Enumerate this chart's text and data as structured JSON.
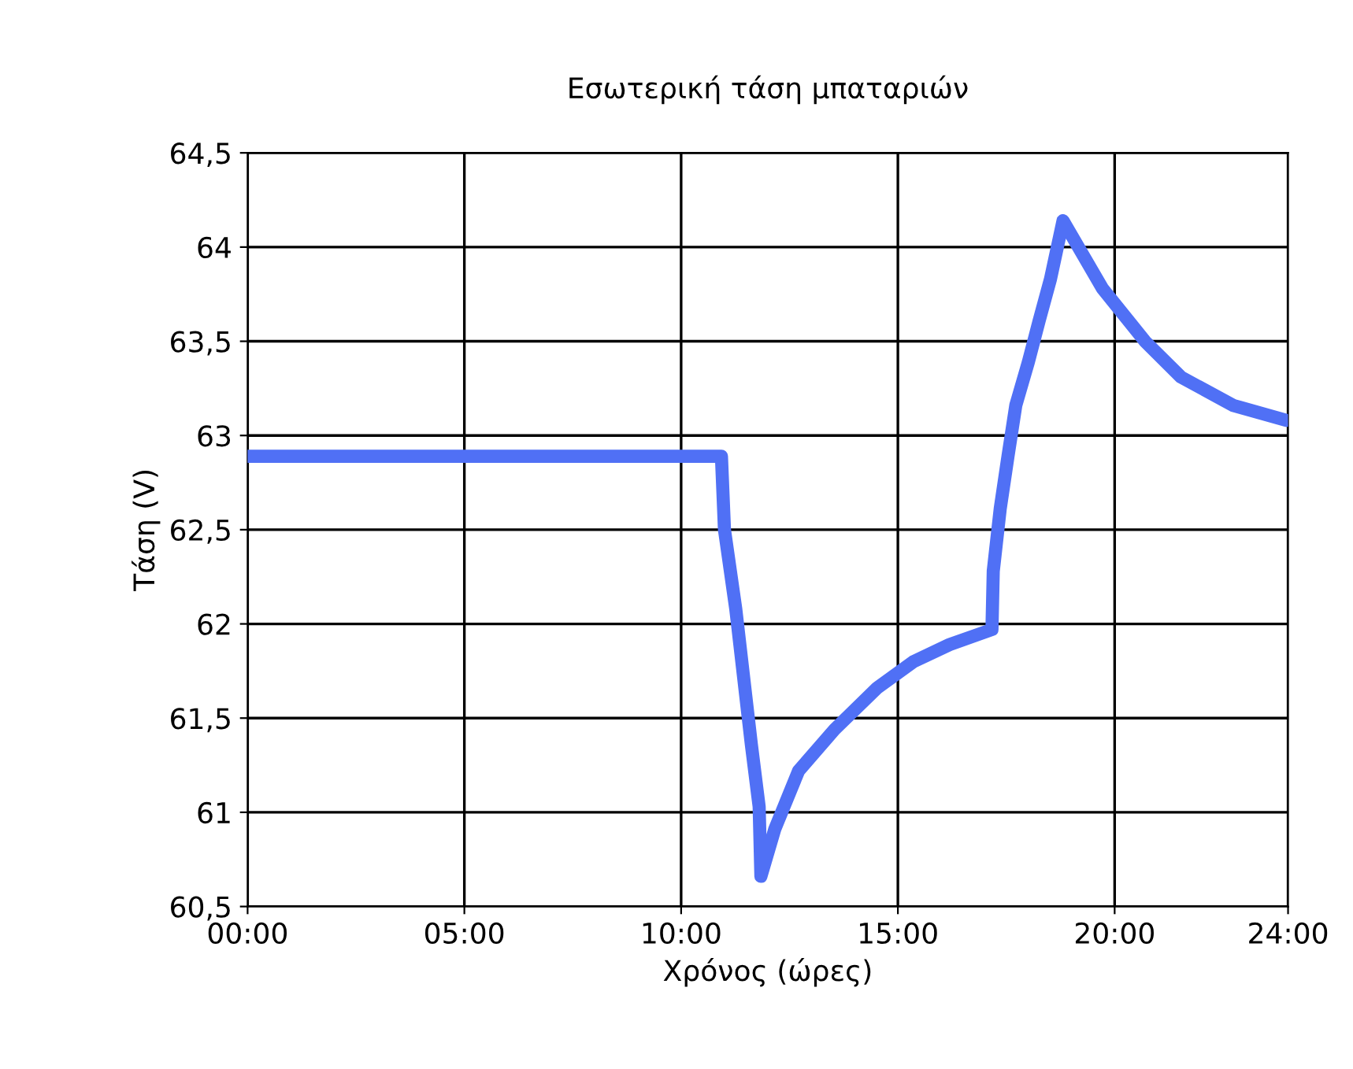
{
  "chart_data": {
    "type": "line",
    "title": "Εσωτερική τάση μπαταριών",
    "xlabel": "Χρόνος (ώρες)",
    "ylabel": "Τάση (V)",
    "x": [
      0,
      10.93,
      11.0,
      11.26,
      11.44,
      11.62,
      11.8,
      11.84,
      12.16,
      12.71,
      13.54,
      14.52,
      15.36,
      16.19,
      17.17,
      17.2,
      17.36,
      17.54,
      17.72,
      18.01,
      18.26,
      18.52,
      18.81,
      19.72,
      20.7,
      21.53,
      22.73,
      23.96
    ],
    "series": [
      {
        "color": "#5070f5",
        "values": [
          62.89,
          62.89,
          62.5,
          62.08,
          61.72,
          61.36,
          61.03,
          60.66,
          60.91,
          61.22,
          61.44,
          61.66,
          61.8,
          61.89,
          61.97,
          62.28,
          62.61,
          62.89,
          63.16,
          63.39,
          63.61,
          63.83,
          64.14,
          63.78,
          63.5,
          63.31,
          63.16,
          63.08
        ]
      }
    ],
    "xlim": [
      0,
      24
    ],
    "xticks": [
      {
        "value": 0,
        "label": "00:00"
      },
      {
        "value": 5,
        "label": "05:00"
      },
      {
        "value": 10,
        "label": "10:00"
      },
      {
        "value": 15,
        "label": "15:00"
      },
      {
        "value": 20,
        "label": "20:00"
      },
      {
        "value": 24,
        "label": "24:00"
      }
    ],
    "ylim": [
      60.5,
      64.5
    ],
    "yticks": [
      {
        "value": 60.5,
        "label": "60,5"
      },
      61,
      {
        "value": 61.5,
        "label": "61,5"
      },
      62,
      {
        "value": 62.5,
        "label": "62,5"
      },
      63,
      {
        "value": 63.5,
        "label": "63,5"
      },
      64,
      {
        "value": 64.5,
        "label": "64,5"
      }
    ],
    "grid": true,
    "line_style": "solid",
    "marker": "none"
  }
}
